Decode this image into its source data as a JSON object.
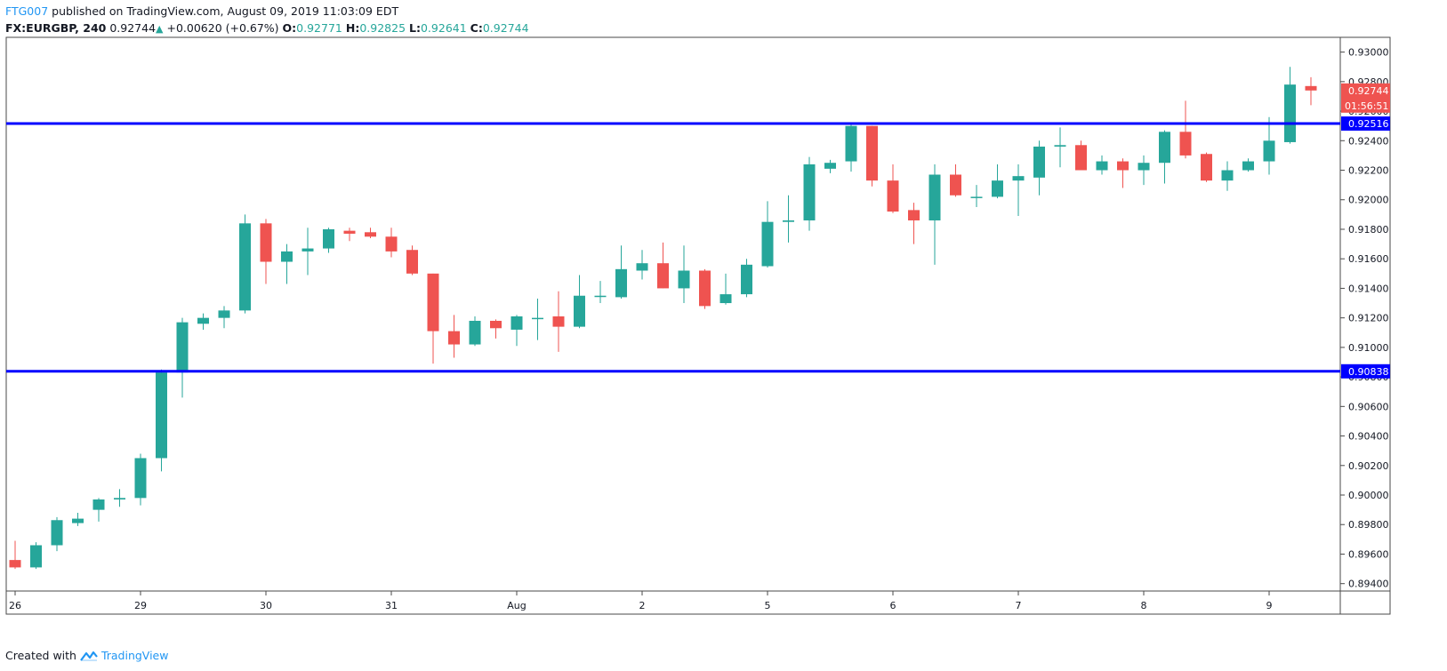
{
  "header": {
    "author": "FTG007",
    "published_text": "published on TradingView.com, August 09, 2019 11:03:09 EDT",
    "symbol": "FX:EURGBP, 240",
    "last_price": "0.92744",
    "change": "+0.00620 (+0.67%)",
    "o_label": "O:",
    "o_value": "0.92771",
    "h_label": "H:",
    "h_value": "0.92825",
    "l_label": "L:",
    "l_value": "0.92641",
    "c_label": "C:",
    "c_value": "0.92744"
  },
  "footer": {
    "created_with": "Created with",
    "brand": "TradingView"
  },
  "colors": {
    "up": "#26a69a",
    "down": "#ef5350",
    "level_line": "#0000ff",
    "axis_text": "#131722",
    "border": "#4a4a4a"
  },
  "chart_data": {
    "type": "candlestick",
    "symbol": "FX:EURGBP",
    "interval": "240",
    "ylim": [
      0.8935,
      0.931
    ],
    "y_ticks": [
      "0.93000",
      "0.92800",
      "0.92600",
      "0.92400",
      "0.92200",
      "0.92000",
      "0.91800",
      "0.91600",
      "0.91400",
      "0.91200",
      "0.91000",
      "0.90800",
      "0.90600",
      "0.90400",
      "0.90200",
      "0.90000",
      "0.89800",
      "0.89600",
      "0.89400"
    ],
    "x_ticks": [
      {
        "label": "26",
        "index": 0
      },
      {
        "label": "29",
        "index": 6
      },
      {
        "label": "30",
        "index": 12
      },
      {
        "label": "31",
        "index": 18
      },
      {
        "label": "Aug",
        "index": 24
      },
      {
        "label": "2",
        "index": 30
      },
      {
        "label": "5",
        "index": 36
      },
      {
        "label": "6",
        "index": 42
      },
      {
        "label": "7",
        "index": 48
      },
      {
        "label": "8",
        "index": 54
      },
      {
        "label": "9",
        "index": 60
      }
    ],
    "horizontal_levels": [
      {
        "value": 0.92516,
        "label": "0.92516"
      },
      {
        "value": 0.90838,
        "label": "0.90838"
      }
    ],
    "last_price_label": "0.92744",
    "countdown_label": "01:56:51",
    "candles": [
      {
        "o": 0.8956,
        "h": 0.8969,
        "l": 0.895,
        "c": 0.8951
      },
      {
        "o": 0.8951,
        "h": 0.8968,
        "l": 0.895,
        "c": 0.8966
      },
      {
        "o": 0.8966,
        "h": 0.8985,
        "l": 0.8962,
        "c": 0.8983
      },
      {
        "o": 0.8981,
        "h": 0.8988,
        "l": 0.8979,
        "c": 0.8984
      },
      {
        "o": 0.899,
        "h": 0.8998,
        "l": 0.8982,
        "c": 0.8997
      },
      {
        "o": 0.8997,
        "h": 0.9004,
        "l": 0.8992,
        "c": 0.8998
      },
      {
        "o": 0.8998,
        "h": 0.9028,
        "l": 0.8993,
        "c": 0.9025
      },
      {
        "o": 0.9025,
        "h": 0.9085,
        "l": 0.9016,
        "c": 0.9083
      },
      {
        "o": 0.9083,
        "h": 0.912,
        "l": 0.9066,
        "c": 0.9117
      },
      {
        "o": 0.9116,
        "h": 0.9123,
        "l": 0.9112,
        "c": 0.912
      },
      {
        "o": 0.912,
        "h": 0.9128,
        "l": 0.9113,
        "c": 0.9125
      },
      {
        "o": 0.9125,
        "h": 0.919,
        "l": 0.9123,
        "c": 0.9184
      },
      {
        "o": 0.9184,
        "h": 0.9187,
        "l": 0.9143,
        "c": 0.9158
      },
      {
        "o": 0.9158,
        "h": 0.917,
        "l": 0.9143,
        "c": 0.9165
      },
      {
        "o": 0.9165,
        "h": 0.9181,
        "l": 0.9149,
        "c": 0.9167
      },
      {
        "o": 0.9167,
        "h": 0.9181,
        "l": 0.9164,
        "c": 0.918
      },
      {
        "o": 0.9179,
        "h": 0.9181,
        "l": 0.9172,
        "c": 0.9177
      },
      {
        "o": 0.9178,
        "h": 0.9181,
        "l": 0.9174,
        "c": 0.9175
      },
      {
        "o": 0.9175,
        "h": 0.9181,
        "l": 0.9161,
        "c": 0.9165
      },
      {
        "o": 0.9166,
        "h": 0.9169,
        "l": 0.9149,
        "c": 0.915
      },
      {
        "o": 0.915,
        "h": 0.915,
        "l": 0.9089,
        "c": 0.9111
      },
      {
        "o": 0.9111,
        "h": 0.9122,
        "l": 0.9093,
        "c": 0.9102
      },
      {
        "o": 0.9102,
        "h": 0.9121,
        "l": 0.9101,
        "c": 0.9118
      },
      {
        "o": 0.9118,
        "h": 0.9119,
        "l": 0.9106,
        "c": 0.9113
      },
      {
        "o": 0.9112,
        "h": 0.9122,
        "l": 0.9101,
        "c": 0.9121
      },
      {
        "o": 0.912,
        "h": 0.9133,
        "l": 0.9105,
        "c": 0.912
      },
      {
        "o": 0.9121,
        "h": 0.9138,
        "l": 0.9097,
        "c": 0.9114
      },
      {
        "o": 0.9114,
        "h": 0.9149,
        "l": 0.9113,
        "c": 0.9135
      },
      {
        "o": 0.9135,
        "h": 0.9145,
        "l": 0.913,
        "c": 0.9135
      },
      {
        "o": 0.9134,
        "h": 0.9169,
        "l": 0.9133,
        "c": 0.9153
      },
      {
        "o": 0.9152,
        "h": 0.9166,
        "l": 0.9146,
        "c": 0.9157
      },
      {
        "o": 0.9157,
        "h": 0.9171,
        "l": 0.914,
        "c": 0.914
      },
      {
        "o": 0.914,
        "h": 0.9169,
        "l": 0.913,
        "c": 0.9152
      },
      {
        "o": 0.9152,
        "h": 0.9153,
        "l": 0.9126,
        "c": 0.9128
      },
      {
        "o": 0.913,
        "h": 0.915,
        "l": 0.9129,
        "c": 0.9136
      },
      {
        "o": 0.9136,
        "h": 0.916,
        "l": 0.9134,
        "c": 0.9156
      },
      {
        "o": 0.9155,
        "h": 0.9199,
        "l": 0.9154,
        "c": 0.9185
      },
      {
        "o": 0.9185,
        "h": 0.9203,
        "l": 0.9171,
        "c": 0.9186
      },
      {
        "o": 0.9186,
        "h": 0.9229,
        "l": 0.9179,
        "c": 0.9224
      },
      {
        "o": 0.9221,
        "h": 0.9227,
        "l": 0.9218,
        "c": 0.9225
      },
      {
        "o": 0.9226,
        "h": 0.9252,
        "l": 0.9219,
        "c": 0.925
      },
      {
        "o": 0.925,
        "h": 0.925,
        "l": 0.9209,
        "c": 0.9213
      },
      {
        "o": 0.9213,
        "h": 0.9224,
        "l": 0.9191,
        "c": 0.9192
      },
      {
        "o": 0.9193,
        "h": 0.9198,
        "l": 0.917,
        "c": 0.9186
      },
      {
        "o": 0.9186,
        "h": 0.9224,
        "l": 0.9156,
        "c": 0.9217
      },
      {
        "o": 0.9217,
        "h": 0.9224,
        "l": 0.9202,
        "c": 0.9203
      },
      {
        "o": 0.9202,
        "h": 0.921,
        "l": 0.9195,
        "c": 0.9202
      },
      {
        "o": 0.9202,
        "h": 0.9224,
        "l": 0.9201,
        "c": 0.9213
      },
      {
        "o": 0.9213,
        "h": 0.9224,
        "l": 0.9189,
        "c": 0.9216
      },
      {
        "o": 0.9215,
        "h": 0.924,
        "l": 0.9203,
        "c": 0.9236
      },
      {
        "o": 0.9236,
        "h": 0.9249,
        "l": 0.9222,
        "c": 0.9237
      },
      {
        "o": 0.9237,
        "h": 0.924,
        "l": 0.922,
        "c": 0.922
      },
      {
        "o": 0.922,
        "h": 0.923,
        "l": 0.9217,
        "c": 0.9226
      },
      {
        "o": 0.9226,
        "h": 0.9228,
        "l": 0.9208,
        "c": 0.922
      },
      {
        "o": 0.922,
        "h": 0.923,
        "l": 0.921,
        "c": 0.9225
      },
      {
        "o": 0.9225,
        "h": 0.9247,
        "l": 0.9211,
        "c": 0.9246
      },
      {
        "o": 0.9246,
        "h": 0.9267,
        "l": 0.9228,
        "c": 0.923
      },
      {
        "o": 0.9231,
        "h": 0.9232,
        "l": 0.9212,
        "c": 0.9213
      },
      {
        "o": 0.9213,
        "h": 0.9226,
        "l": 0.9206,
        "c": 0.922
      },
      {
        "o": 0.922,
        "h": 0.9228,
        "l": 0.9219,
        "c": 0.9226
      },
      {
        "o": 0.9226,
        "h": 0.9256,
        "l": 0.9217,
        "c": 0.924
      },
      {
        "o": 0.9239,
        "h": 0.929,
        "l": 0.9238,
        "c": 0.9278
      },
      {
        "o": 0.9277,
        "h": 0.9283,
        "l": 0.9264,
        "c": 0.9274
      }
    ]
  }
}
